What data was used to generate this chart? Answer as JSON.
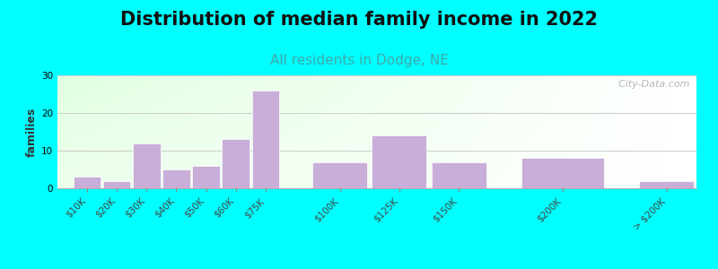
{
  "title": "Distribution of median family income in 2022",
  "subtitle": "All residents in Dodge, NE",
  "subtitle_color": "#3DAAAA",
  "ylabel": "families",
  "categories": [
    "$10K",
    "$20K",
    "$30K",
    "$40K",
    "$50K",
    "$60K",
    "$75K",
    "$100K",
    "$125K",
    "$150K",
    "$200K",
    "> $200K"
  ],
  "values": [
    3,
    2,
    12,
    5,
    6,
    13,
    26,
    7,
    14,
    7,
    8,
    2
  ],
  "x_positions": [
    0,
    1,
    2,
    3,
    4,
    5,
    6,
    8,
    10,
    12,
    15,
    19
  ],
  "bar_widths": [
    1,
    1,
    1,
    1,
    1,
    1,
    1,
    2,
    2,
    2,
    3,
    2
  ],
  "bar_color": "#C8AED8",
  "bar_edgecolor": "#FFFFFF",
  "ylim": [
    0,
    30
  ],
  "yticks": [
    0,
    10,
    20,
    30
  ],
  "background_outer": "#00FFFF",
  "grid_color": "#CCCCCC",
  "title_fontsize": 15,
  "subtitle_fontsize": 11,
  "ylabel_fontsize": 9,
  "tick_fontsize": 7.5,
  "watermark": "  City-Data.com"
}
